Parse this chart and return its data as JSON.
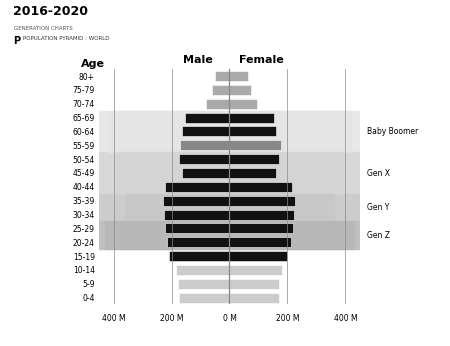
{
  "title_year": "2016-2020",
  "subtitle1": "GENERATION CHARTS",
  "subtitle2": "POPULATION PYRAMID : WORLD",
  "male_label": "Male",
  "female_label": "Female",
  "age_label": "Age",
  "age_groups": [
    "0-4",
    "5-9",
    "10-14",
    "15-19",
    "20-24",
    "25-29",
    "30-34",
    "35-39",
    "40-44",
    "45-49",
    "50-54",
    "55-59",
    "60-64",
    "65-69",
    "70-74",
    "75-79",
    "80+"
  ],
  "male_values": [
    175,
    178,
    185,
    210,
    215,
    222,
    226,
    230,
    222,
    165,
    175,
    170,
    165,
    155,
    80,
    60,
    50
  ],
  "female_values": [
    170,
    172,
    180,
    200,
    212,
    218,
    222,
    226,
    217,
    162,
    172,
    176,
    162,
    155,
    95,
    75,
    65
  ],
  "bar_colors": [
    "#cccccc",
    "#cccccc",
    "#cccccc",
    "#111111",
    "#111111",
    "#111111",
    "#111111",
    "#111111",
    "#111111",
    "#111111",
    "#111111",
    "#888888",
    "#111111",
    "#111111",
    "#aaaaaa",
    "#aaaaaa",
    "#aaaaaa"
  ],
  "xlim": 450,
  "xtick_positions": [
    -400,
    -200,
    0,
    200,
    400
  ],
  "xtick_labels": [
    "400 M",
    "200 M",
    "0 M",
    "200 M",
    "400 M"
  ],
  "bg_color": "#ffffff",
  "band_baby_boomer": {
    "ymin": 10.5,
    "ymax": 13.5,
    "color": "#dddddd"
  },
  "band_genx": {
    "ymin": 7.5,
    "ymax": 10.5,
    "color": "#d0d0d0"
  },
  "band_geny": {
    "ymin": 5.5,
    "ymax": 7.5,
    "color": "#c8c8c8"
  },
  "band_genz": {
    "ymin": 3.5,
    "ymax": 5.5,
    "color": "#b8b8b8"
  },
  "gen_labels": [
    {
      "label": "Baby Boomer",
      "y": 12.0
    },
    {
      "label": "Gen X",
      "y": 9.0
    },
    {
      "label": "Gen Y",
      "y": 6.5
    },
    {
      "label": "Gen Z",
      "y": 4.5
    }
  ]
}
